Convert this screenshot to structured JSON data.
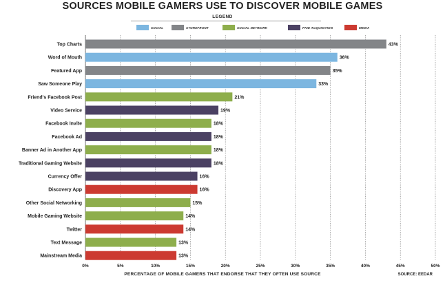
{
  "chart_data": {
    "type": "bar",
    "orientation": "horizontal",
    "title": "SOURCES MOBILE GAMERS USE TO DISCOVER MOBILE GAMES",
    "legend_title": "LEGEND",
    "legend_placement": "top-center",
    "xlabel": "PERCENTAGE OF MOBILE GAMERS THAT ENDORSE THAT THEY OFTEN USE SOURCE",
    "source": "SOURCE: EEDAR",
    "xlim": [
      0,
      50
    ],
    "grid": true,
    "ticks": [
      "0%",
      "5%",
      "10%",
      "15%",
      "20%",
      "25%",
      "30%",
      "35%",
      "40%",
      "45%",
      "50%"
    ],
    "tick_values": [
      0,
      5,
      10,
      15,
      20,
      25,
      30,
      35,
      40,
      45,
      50
    ],
    "legend": [
      {
        "key": "social",
        "label": "SOCIAL",
        "color": "#7cb6e0"
      },
      {
        "key": "storefront",
        "label": "STOREFRONT",
        "color": "#838588"
      },
      {
        "key": "social_network",
        "label": "SOCIAL NETWORK",
        "color": "#8eae4c"
      },
      {
        "key": "paid_acquisition",
        "label": "PAID ACQUISITION",
        "color": "#4b4163"
      },
      {
        "key": "media",
        "label": "MEDIA",
        "color": "#cc3a31"
      }
    ],
    "bars": [
      {
        "category": "Top Charts",
        "value": 43,
        "label": "43%",
        "group": "storefront"
      },
      {
        "category": "Word of Mouth",
        "value": 36,
        "label": "36%",
        "group": "social"
      },
      {
        "category": "Featured App",
        "value": 35,
        "label": "35%",
        "group": "storefront"
      },
      {
        "category": "Saw Someone Play",
        "value": 33,
        "label": "33%",
        "group": "social"
      },
      {
        "category": "Friend's Facebook Post",
        "value": 21,
        "label": "21%",
        "group": "social_network"
      },
      {
        "category": "Video Service",
        "value": 19,
        "label": "19%",
        "group": "paid_acquisition"
      },
      {
        "category": "Facebook Invite",
        "value": 18,
        "label": "18%",
        "group": "social_network"
      },
      {
        "category": "Facebook Ad",
        "value": 18,
        "label": "18%",
        "group": "paid_acquisition"
      },
      {
        "category": "Banner Ad in Another App",
        "value": 18,
        "label": "18%",
        "group": "social_network"
      },
      {
        "category": "Traditional Gaming Website",
        "value": 18,
        "label": "18%",
        "group": "paid_acquisition"
      },
      {
        "category": "Currency Offer",
        "value": 16,
        "label": "16%",
        "group": "paid_acquisition"
      },
      {
        "category": "Discovery App",
        "value": 16,
        "label": "16%",
        "group": "media"
      },
      {
        "category": "Other Social Networking",
        "value": 15,
        "label": "15%",
        "group": "social_network"
      },
      {
        "category": "Mobile Gaming Website",
        "value": 14,
        "label": "14%",
        "group": "social_network"
      },
      {
        "category": "Twitter",
        "value": 14,
        "label": "14%",
        "group": "media"
      },
      {
        "category": "Text Message",
        "value": 13,
        "label": "13%",
        "group": "social_network"
      },
      {
        "category": "Mainstream Media",
        "value": 13,
        "label": "13%",
        "group": "media"
      }
    ]
  }
}
